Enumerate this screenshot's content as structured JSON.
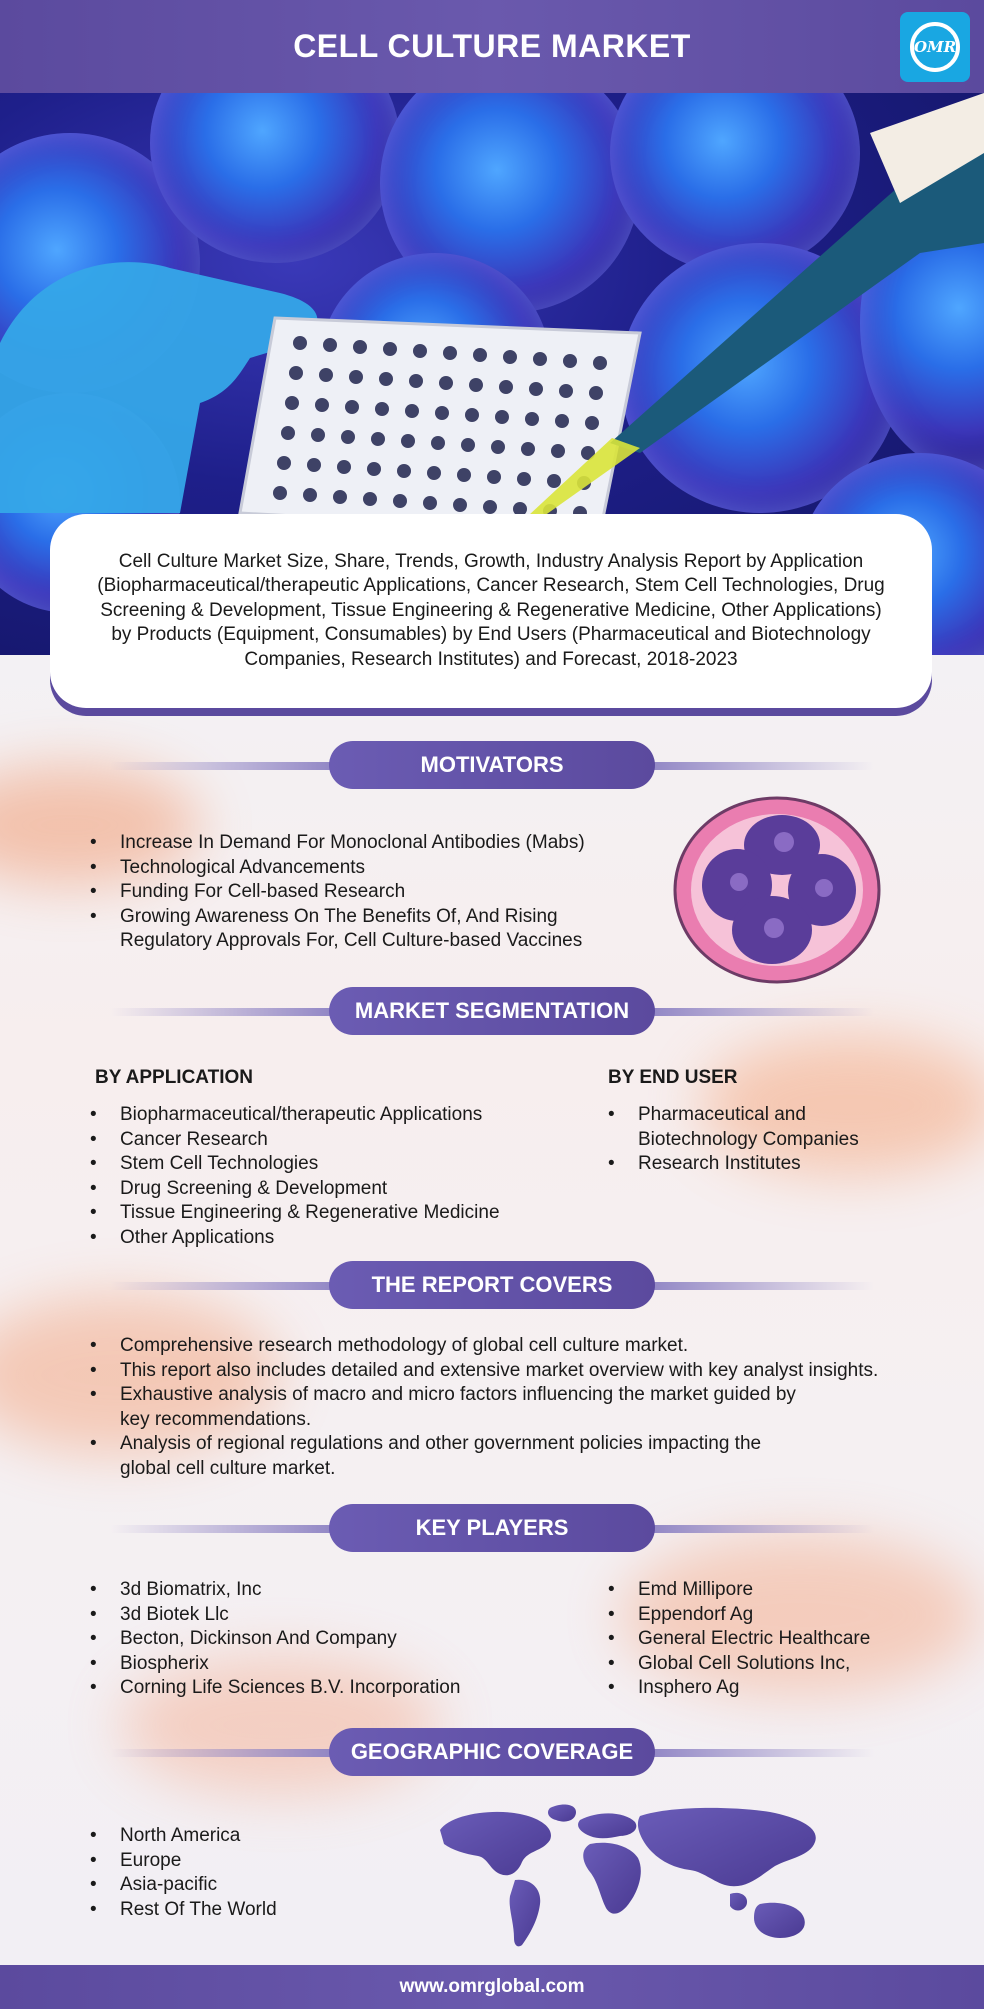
{
  "header": {
    "title": "CELL CULTURE MARKET",
    "logo_text": "OMR"
  },
  "intro": "Cell Culture Market Size, Share, Trends, Growth, Industry Analysis Report by Application (Biopharmaceutical/therapeutic Applications, Cancer Research, Stem Cell Technologies, Drug Screening & Development, Tissue Engineering & Regenerative Medicine, Other Applications) by Products (Equipment, Consumables) by End Users (Pharmaceutical and Biotechnology Companies, Research Institutes) and Forecast, 2018-2023",
  "motivators": {
    "title": "MOTIVATORS",
    "items": [
      "Increase In Demand For Monoclonal Antibodies (Mabs)",
      "Technological Advancements",
      "Funding For Cell-based Research",
      "Growing Awareness On The Benefits Of, And Rising Regulatory Approvals For, Cell Culture-based Vaccines"
    ]
  },
  "segmentation": {
    "title": "MARKET SEGMENTATION",
    "application_heading": "BY APPLICATION",
    "application_items": [
      "Biopharmaceutical/therapeutic Applications",
      "Cancer Research",
      "Stem Cell Technologies",
      "Drug Screening & Development",
      "Tissue Engineering & Regenerative Medicine",
      "Other Applications"
    ],
    "end_user_heading": "BY END USER",
    "end_user_items": [
      "Pharmaceutical and Biotechnology Companies",
      "Research Institutes"
    ]
  },
  "report": {
    "title": "THE REPORT COVERS",
    "items": [
      "Comprehensive research methodology of global cell culture market.",
      "This report also includes detailed and extensive market overview with key analyst insights.",
      "Exhaustive analysis of macro and micro factors influencing the market guided by key recommendations.",
      "Analysis of regional regulations and other government policies impacting the global cell culture market."
    ]
  },
  "players": {
    "title": "KEY PLAYERS",
    "left": [
      "3d Biomatrix, Inc",
      "3d Biotek Llc",
      "Becton, Dickinson And Company",
      "Biospherix",
      "Corning Life Sciences B.V. Incorporation"
    ],
    "right": [
      "Emd Millipore",
      "Eppendorf Ag",
      "General Electric Healthcare",
      "Global Cell Solutions Inc,",
      "Insphero Ag"
    ]
  },
  "geo": {
    "title": "GEOGRAPHIC COVERAGE",
    "items": [
      "North America",
      "Europe",
      "Asia-pacific",
      "Rest Of The World"
    ]
  },
  "footer": {
    "url": "www.omrglobal.com"
  },
  "colors": {
    "primary": "#5b4a9e",
    "accent": "#19a7e2"
  }
}
